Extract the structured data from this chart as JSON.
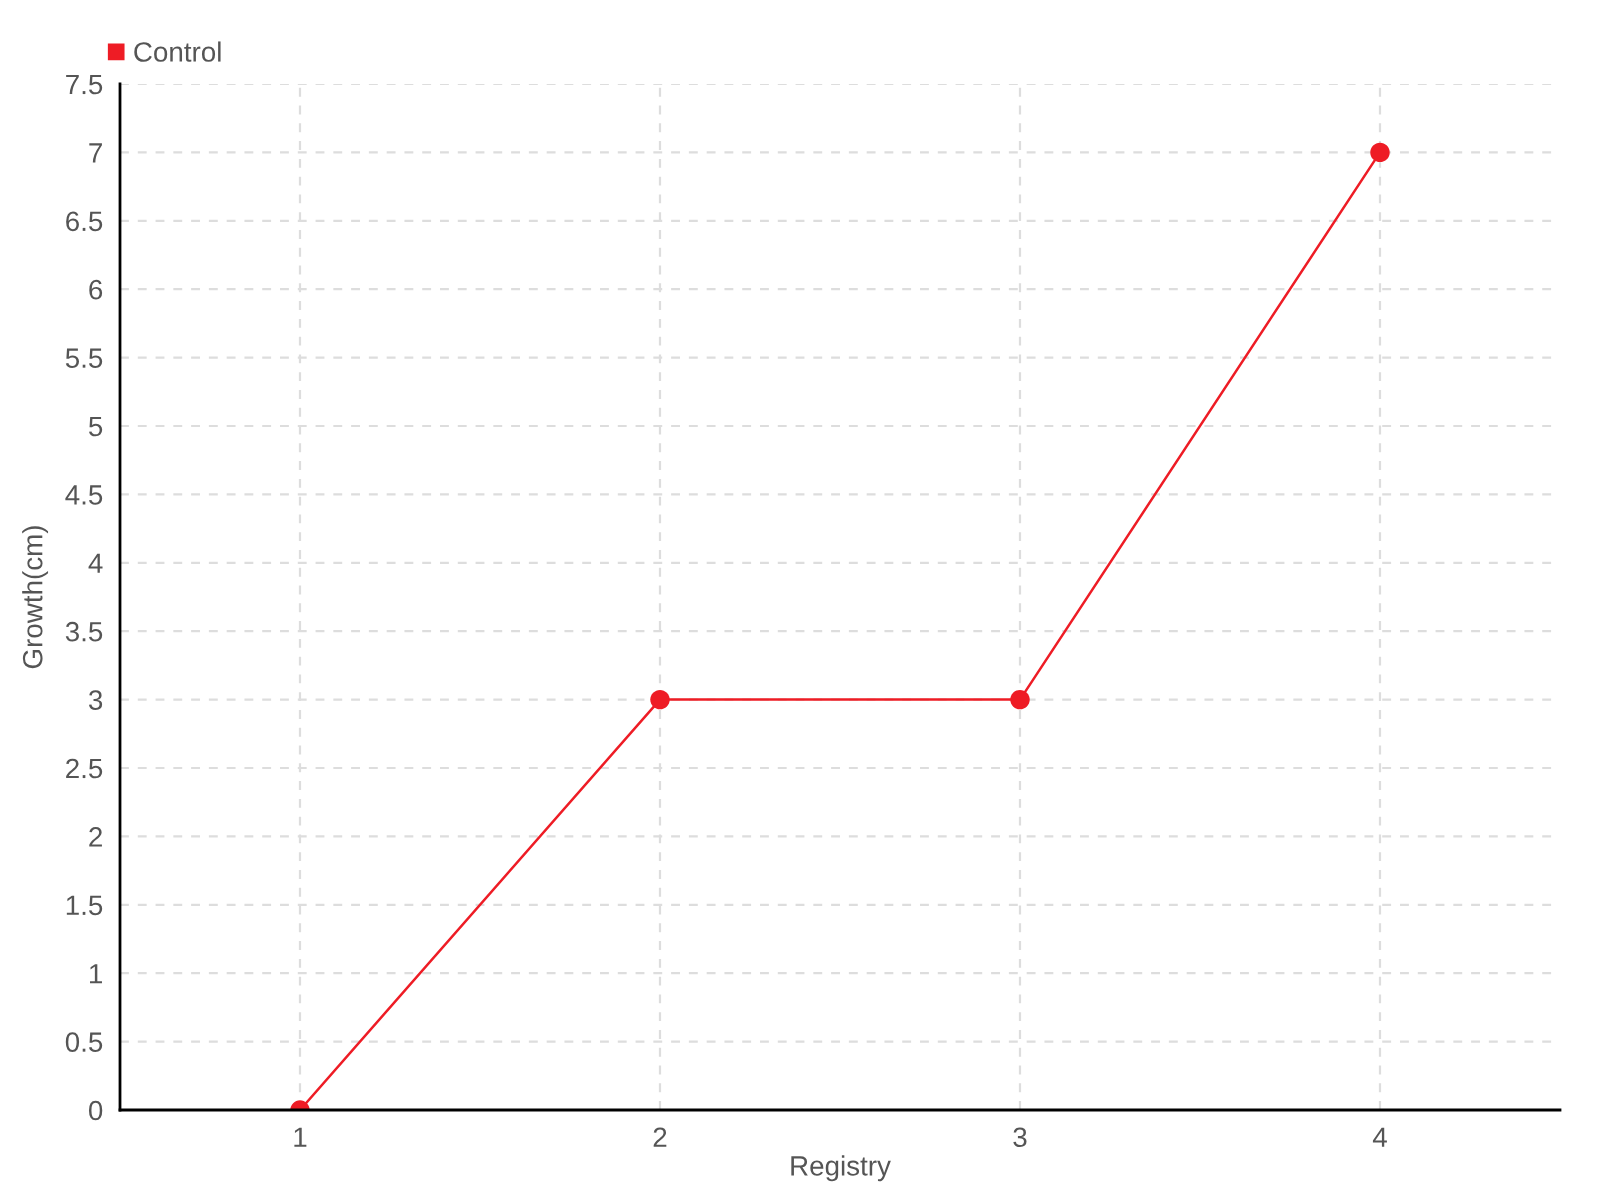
{
  "chart_data": {
    "type": "line",
    "xlabel": "Registry",
    "ylabel": "Growth(cm)",
    "categories": [
      "1",
      "2",
      "3",
      "4"
    ],
    "series": [
      {
        "name": "Control",
        "color": "#ee1c25",
        "values": [
          0,
          3,
          3,
          7
        ]
      }
    ],
    "ylim": [
      0,
      7.5
    ],
    "yticks": [
      0,
      0.5,
      1,
      1.5,
      2,
      2.5,
      3,
      3.5,
      4,
      4.5,
      5,
      5.5,
      6,
      6.5,
      7,
      7.5
    ],
    "grid": true,
    "legend": "top left",
    "marker": "circle",
    "line_style": "solid"
  }
}
